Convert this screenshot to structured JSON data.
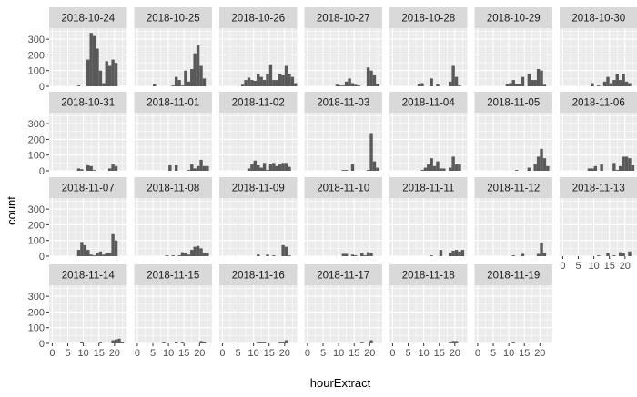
{
  "chart_data": {
    "type": "bar",
    "subtype": "faceted-histogram",
    "title": "",
    "xlabel": "hourExtract",
    "ylabel": "count",
    "x_ticks": [
      0,
      5,
      10,
      15,
      20
    ],
    "y_ticks": [
      0,
      100,
      200,
      300
    ],
    "xlim": [
      -1,
      24
    ],
    "ylim": [
      0,
      370
    ],
    "bin_centers": [
      0.5,
      1.5,
      2.5,
      3.5,
      4.5,
      5.5,
      6.5,
      7.5,
      8.5,
      9.5,
      10.5,
      11.5,
      12.5,
      13.5,
      14.5,
      15.5,
      16.5,
      17.5,
      18.5,
      19.5,
      20.5,
      21.5,
      22.5,
      23.5
    ],
    "grid": true,
    "panel_background": "#ebebeb",
    "strip_background": "#d9d9d9",
    "bar_color": "#595959",
    "grid_color": "#ffffff",
    "facets": [
      {
        "label": "2018-10-24",
        "values": [
          0,
          0,
          0,
          0,
          0,
          0,
          0,
          0,
          5,
          0,
          0,
          170,
          340,
          320,
          240,
          100,
          20,
          160,
          130,
          170,
          150,
          0,
          0,
          0
        ]
      },
      {
        "label": "2018-10-25",
        "values": [
          0,
          0,
          0,
          0,
          0,
          15,
          0,
          0,
          0,
          0,
          0,
          5,
          60,
          40,
          5,
          100,
          30,
          110,
          210,
          260,
          130,
          50,
          0,
          0
        ]
      },
      {
        "label": "2018-10-26",
        "values": [
          0,
          0,
          0,
          0,
          0,
          0,
          10,
          40,
          55,
          40,
          35,
          80,
          60,
          40,
          80,
          140,
          40,
          40,
          80,
          70,
          130,
          80,
          60,
          20
        ]
      },
      {
        "label": "2018-10-27",
        "values": [
          0,
          0,
          0,
          0,
          0,
          0,
          0,
          0,
          0,
          10,
          5,
          5,
          30,
          50,
          20,
          10,
          5,
          0,
          0,
          120,
          100,
          70,
          15,
          0
        ]
      },
      {
        "label": "2018-10-28",
        "values": [
          0,
          0,
          0,
          0,
          0,
          0,
          0,
          0,
          15,
          20,
          0,
          0,
          50,
          0,
          15,
          0,
          0,
          0,
          30,
          130,
          60,
          5,
          0,
          0
        ]
      },
      {
        "label": "2018-10-29",
        "values": [
          0,
          0,
          0,
          0,
          0,
          0,
          0,
          0,
          0,
          15,
          20,
          40,
          15,
          15,
          60,
          0,
          80,
          40,
          40,
          110,
          100,
          10,
          0,
          0
        ]
      },
      {
        "label": "2018-10-30",
        "values": [
          0,
          0,
          0,
          0,
          0,
          0,
          0,
          0,
          0,
          20,
          0,
          5,
          0,
          30,
          60,
          20,
          40,
          80,
          40,
          80,
          30,
          20,
          0,
          0
        ]
      },
      {
        "label": "2018-10-31",
        "values": [
          0,
          0,
          0,
          0,
          0,
          0,
          0,
          0,
          15,
          10,
          0,
          35,
          30,
          5,
          0,
          0,
          0,
          0,
          15,
          40,
          30,
          0,
          0,
          0
        ]
      },
      {
        "label": "2018-11-01",
        "values": [
          0,
          0,
          0,
          0,
          0,
          0,
          0,
          0,
          0,
          0,
          35,
          0,
          35,
          0,
          0,
          0,
          5,
          40,
          15,
          30,
          70,
          30,
          30,
          0
        ]
      },
      {
        "label": "2018-11-02",
        "values": [
          0,
          0,
          0,
          0,
          0,
          0,
          0,
          0,
          15,
          40,
          65,
          35,
          20,
          50,
          5,
          40,
          50,
          30,
          40,
          50,
          50,
          25,
          0,
          0
        ]
      },
      {
        "label": "2018-11-03",
        "values": [
          0,
          0,
          0,
          0,
          0,
          0,
          0,
          0,
          0,
          0,
          0,
          5,
          5,
          0,
          40,
          0,
          0,
          0,
          0,
          5,
          240,
          60,
          20,
          0
        ]
      },
      {
        "label": "2018-11-04",
        "values": [
          0,
          0,
          0,
          0,
          0,
          0,
          0,
          0,
          0,
          5,
          20,
          40,
          80,
          30,
          60,
          15,
          15,
          0,
          20,
          90,
          40,
          40,
          0,
          0
        ]
      },
      {
        "label": "2018-11-05",
        "values": [
          0,
          0,
          0,
          0,
          0,
          0,
          0,
          0,
          0,
          0,
          0,
          0,
          5,
          0,
          0,
          0,
          20,
          0,
          40,
          90,
          140,
          80,
          30,
          0
        ]
      },
      {
        "label": "2018-11-06",
        "values": [
          0,
          0,
          0,
          0,
          0,
          0,
          0,
          0,
          15,
          15,
          30,
          0,
          40,
          0,
          0,
          0,
          50,
          5,
          30,
          90,
          90,
          80,
          35,
          0
        ]
      },
      {
        "label": "2018-11-07",
        "values": [
          0,
          0,
          0,
          0,
          0,
          0,
          0,
          0,
          40,
          90,
          70,
          40,
          10,
          5,
          20,
          30,
          10,
          20,
          20,
          140,
          100,
          0,
          0,
          0
        ]
      },
      {
        "label": "2018-11-08",
        "values": [
          0,
          0,
          0,
          0,
          0,
          0,
          0,
          0,
          0,
          5,
          0,
          5,
          0,
          5,
          25,
          20,
          10,
          40,
          60,
          65,
          50,
          20,
          20,
          0
        ]
      },
      {
        "label": "2018-11-09",
        "values": [
          0,
          0,
          0,
          0,
          0,
          0,
          0,
          0,
          0,
          0,
          0,
          10,
          0,
          0,
          10,
          0,
          5,
          0,
          0,
          70,
          60,
          5,
          0,
          0
        ]
      },
      {
        "label": "2018-11-10",
        "values": [
          0,
          0,
          0,
          0,
          0,
          0,
          0,
          0,
          0,
          0,
          0,
          15,
          15,
          0,
          10,
          5,
          0,
          20,
          5,
          25,
          20,
          0,
          0,
          0
        ]
      },
      {
        "label": "2018-11-11",
        "values": [
          0,
          0,
          0,
          0,
          0,
          0,
          0,
          0,
          0,
          0,
          0,
          0,
          5,
          0,
          0,
          40,
          0,
          0,
          20,
          35,
          40,
          30,
          40,
          0
        ]
      },
      {
        "label": "2018-11-12",
        "values": [
          0,
          0,
          0,
          0,
          0,
          0,
          0,
          0,
          0,
          0,
          0,
          5,
          0,
          0,
          15,
          0,
          0,
          0,
          0,
          15,
          85,
          20,
          0,
          0
        ]
      },
      {
        "label": "2018-11-13",
        "values": [
          0,
          0,
          0,
          0,
          0,
          0,
          0,
          0,
          0,
          0,
          0,
          5,
          0,
          0,
          20,
          0,
          5,
          0,
          25,
          20,
          0,
          30,
          0,
          0
        ]
      },
      {
        "label": "2018-11-14",
        "values": [
          0,
          0,
          0,
          0,
          0,
          0,
          0,
          0,
          0,
          10,
          0,
          0,
          0,
          0,
          0,
          5,
          0,
          0,
          0,
          20,
          25,
          30,
          10,
          0
        ]
      },
      {
        "label": "2018-11-15",
        "values": [
          0,
          0,
          0,
          0,
          0,
          0,
          0,
          0,
          5,
          0,
          0,
          0,
          10,
          0,
          5,
          0,
          0,
          0,
          0,
          0,
          15,
          10,
          0,
          0
        ]
      },
      {
        "label": "2018-11-16",
        "values": [
          0,
          0,
          0,
          0,
          0,
          0,
          0,
          0,
          0,
          0,
          0,
          5,
          5,
          5,
          0,
          0,
          0,
          0,
          5,
          5,
          20,
          0,
          0,
          0
        ]
      },
      {
        "label": "2018-11-17",
        "values": [
          0,
          0,
          0,
          0,
          0,
          0,
          0,
          0,
          0,
          0,
          0,
          0,
          0,
          0,
          0,
          0,
          0,
          5,
          0,
          0,
          20,
          0,
          0,
          0
        ]
      },
      {
        "label": "2018-11-18",
        "values": [
          0,
          0,
          0,
          0,
          0,
          0,
          0,
          0,
          0,
          0,
          0,
          0,
          0,
          0,
          0,
          0,
          0,
          0,
          5,
          15,
          15,
          0,
          0,
          0
        ]
      },
      {
        "label": "2018-11-19",
        "values": [
          0,
          0,
          0,
          0,
          0,
          0,
          0,
          0,
          0,
          0,
          0,
          5,
          0,
          0,
          0,
          0,
          0,
          0,
          0,
          0,
          0,
          0,
          0,
          0
        ]
      }
    ]
  }
}
